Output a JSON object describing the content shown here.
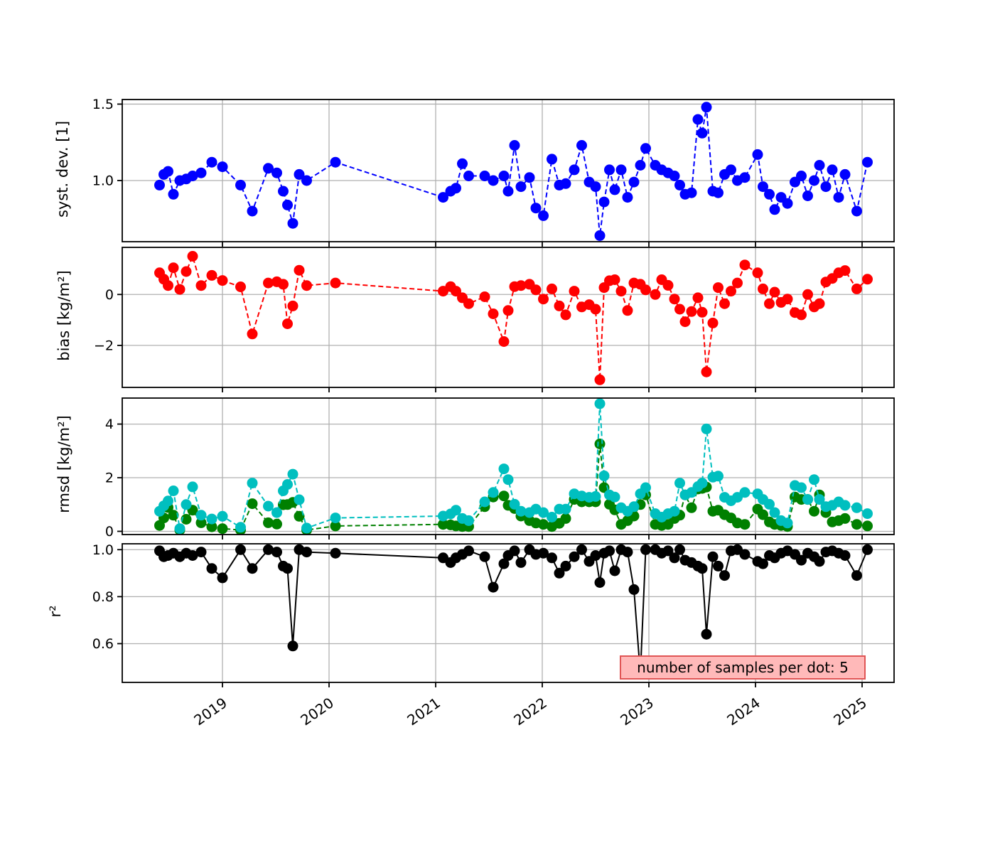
{
  "chart_data": {
    "type": "line",
    "title": "",
    "xlabel": "",
    "xlim": [
      2018.06,
      2025.3
    ],
    "xticks": [
      2019,
      2020,
      2021,
      2022,
      2023,
      2024,
      2025
    ],
    "xtick_labels": [
      "2019",
      "2020",
      "2021",
      "2022",
      "2023",
      "2024",
      "2025"
    ],
    "grid": true,
    "grid_color": "#b0b0b0",
    "x_years": [
      2018.41,
      2018.45,
      2018.49,
      2018.54,
      2018.6,
      2018.66,
      2018.72,
      2018.8,
      2018.9,
      2019.0,
      2019.17,
      2019.28,
      2019.43,
      2019.51,
      2019.57,
      2019.61,
      2019.66,
      2019.72,
      2019.79,
      2020.06,
      2021.07,
      2021.14,
      2021.19,
      2021.25,
      2021.31,
      2021.46,
      2021.54,
      2021.64,
      2021.68,
      2021.74,
      2021.8,
      2021.88,
      2021.94,
      2022.01,
      2022.09,
      2022.16,
      2022.22,
      2022.3,
      2022.37,
      2022.44,
      2022.5,
      2022.54,
      2022.58,
      2022.63,
      2022.68,
      2022.74,
      2022.8,
      2022.86,
      2022.92,
      2022.97,
      2023.06,
      2023.12,
      2023.18,
      2023.24,
      2023.29,
      2023.34,
      2023.4,
      2023.46,
      2023.5,
      2023.54,
      2023.6,
      2023.65,
      2023.71,
      2023.77,
      2023.83,
      2023.9,
      2024.02,
      2024.07,
      2024.13,
      2024.18,
      2024.24,
      2024.3,
      2024.37,
      2024.43,
      2024.49,
      2024.55,
      2024.6,
      2024.66,
      2024.72,
      2024.78,
      2024.84,
      2024.95,
      2025.05
    ],
    "panels": [
      {
        "id": "systdev",
        "ylabel": "syst. dev. [1]",
        "ylim": [
          0.6,
          1.53
        ],
        "yticks": [
          1.0,
          1.5
        ],
        "ytick_labels": [
          "1.0",
          "1.5"
        ],
        "series": [
          {
            "name": "syst_dev",
            "color": "#0000ff",
            "linestyle": "dashed",
            "values": [
              0.97,
              1.04,
              1.06,
              0.91,
              1.0,
              1.01,
              1.03,
              1.05,
              1.12,
              1.09,
              0.97,
              0.8,
              1.08,
              1.05,
              0.93,
              0.84,
              0.72,
              1.04,
              1.0,
              1.12,
              0.89,
              0.93,
              0.95,
              1.11,
              1.03,
              1.03,
              1.0,
              1.03,
              0.93,
              1.23,
              0.96,
              1.02,
              0.82,
              0.77,
              1.14,
              0.97,
              0.98,
              1.07,
              1.23,
              0.99,
              0.96,
              0.64,
              0.86,
              1.07,
              0.94,
              1.07,
              0.89,
              0.99,
              1.1,
              1.21,
              1.1,
              1.07,
              1.05,
              1.03,
              0.97,
              0.91,
              0.92,
              1.4,
              1.31,
              1.48,
              0.93,
              0.92,
              1.04,
              1.07,
              1.0,
              1.02,
              1.17,
              0.96,
              0.91,
              0.81,
              0.89,
              0.85,
              0.99,
              1.03,
              0.9,
              1.0,
              1.1,
              0.96,
              1.07,
              0.89,
              1.04,
              0.8,
              1.12
            ]
          }
        ]
      },
      {
        "id": "bias",
        "ylabel": "bias [kg/m²]",
        "ylim": [
          -3.65,
          1.85
        ],
        "yticks": [
          -2,
          0
        ],
        "ytick_labels": [
          "−2",
          "0"
        ],
        "series": [
          {
            "name": "bias",
            "color": "#ff0000",
            "linestyle": "dashed",
            "values": [
              0.85,
              0.6,
              0.35,
              1.05,
              0.2,
              0.9,
              1.5,
              0.35,
              0.75,
              0.55,
              0.3,
              -1.55,
              0.45,
              0.5,
              0.4,
              -1.15,
              -0.45,
              0.95,
              0.35,
              0.45,
              0.13,
              0.31,
              0.13,
              -0.13,
              -0.36,
              -0.09,
              -0.76,
              -1.85,
              -0.63,
              0.31,
              0.35,
              0.4,
              0.18,
              -0.18,
              0.22,
              -0.45,
              -0.8,
              0.13,
              -0.49,
              -0.4,
              -0.58,
              -3.35,
              0.27,
              0.54,
              0.58,
              0.13,
              -0.63,
              0.45,
              0.4,
              0.18,
              0.0,
              0.58,
              0.36,
              -0.18,
              -0.58,
              -1.07,
              -0.67,
              -0.13,
              -0.7,
              -3.04,
              -1.12,
              0.27,
              -0.36,
              0.13,
              0.45,
              1.16,
              0.85,
              0.22,
              -0.36,
              0.09,
              -0.31,
              -0.18,
              -0.71,
              -0.8,
              0.0,
              -0.49,
              -0.36,
              0.49,
              0.63,
              0.85,
              0.94,
              0.22,
              0.6
            ]
          }
        ]
      },
      {
        "id": "rmsd",
        "ylabel": "rmsd [kg/m²]",
        "ylim": [
          -0.12,
          4.97
        ],
        "yticks": [
          0,
          2,
          4
        ],
        "ytick_labels": [
          "0",
          "2",
          "4"
        ],
        "series": [
          {
            "name": "rmsd_green",
            "color": "#008000",
            "linestyle": "dashed",
            "values": [
              0.22,
              0.5,
              0.89,
              0.6,
              0.05,
              0.45,
              0.79,
              0.32,
              0.17,
              0.1,
              0.05,
              1.03,
              0.32,
              0.27,
              0.99,
              1.0,
              1.08,
              0.56,
              0.05,
              0.2,
              0.26,
              0.24,
              0.2,
              0.18,
              0.18,
              0.92,
              1.28,
              1.32,
              0.97,
              0.85,
              0.57,
              0.4,
              0.31,
              0.26,
              0.18,
              0.3,
              0.48,
              1.19,
              1.1,
              1.1,
              1.1,
              3.26,
              1.63,
              1.01,
              0.8,
              0.26,
              0.4,
              0.57,
              1.0,
              1.36,
              0.26,
              0.22,
              0.26,
              0.48,
              0.6,
              1.36,
              0.88,
              1.58,
              1.6,
              1.65,
              0.75,
              0.79,
              0.62,
              0.5,
              0.31,
              0.26,
              0.83,
              0.62,
              0.35,
              0.26,
              0.22,
              0.18,
              1.28,
              1.19,
              1.19,
              0.75,
              1.36,
              0.7,
              0.35,
              0.4,
              0.48,
              0.26,
              0.2
            ]
          },
          {
            "name": "rmsd_cyan",
            "color": "#00bfbf",
            "linestyle": "dashed",
            "values": [
              0.75,
              0.95,
              1.13,
              1.51,
              0.1,
              1.0,
              1.66,
              0.6,
              0.46,
              0.56,
              0.15,
              1.8,
              0.94,
              0.7,
              1.51,
              1.75,
              2.13,
              1.18,
              0.12,
              0.5,
              0.57,
              0.65,
              0.79,
              0.48,
              0.4,
              1.1,
              1.45,
              2.33,
              1.93,
              1.01,
              0.75,
              0.7,
              0.83,
              0.7,
              0.53,
              0.83,
              0.83,
              1.4,
              1.32,
              1.27,
              1.3,
              4.76,
              2.07,
              1.36,
              1.28,
              0.88,
              0.75,
              0.92,
              1.4,
              1.63,
              0.66,
              0.53,
              0.66,
              0.75,
              1.8,
              1.36,
              1.45,
              1.67,
              1.8,
              3.82,
              2.02,
              2.06,
              1.27,
              1.14,
              1.27,
              1.45,
              1.4,
              1.19,
              1.01,
              0.7,
              0.4,
              0.31,
              1.71,
              1.63,
              1.19,
              1.93,
              1.19,
              0.92,
              0.97,
              1.1,
              0.97,
              0.88,
              0.66
            ]
          }
        ]
      },
      {
        "id": "r2",
        "ylabel": "r²",
        "ylim": [
          0.435,
          1.025
        ],
        "yticks": [
          0.6,
          0.8,
          1.0
        ],
        "ytick_labels": [
          "0.6",
          "0.8",
          "1.0"
        ],
        "annotation": "number of samples per dot: 5",
        "annotation_bg": "#ffb9b9",
        "annotation_border": "#e05555",
        "series": [
          {
            "name": "r2",
            "color": "#000000",
            "linestyle": "solid",
            "values": [
              0.995,
              0.97,
              0.975,
              0.985,
              0.97,
              0.985,
              0.975,
              0.99,
              0.92,
              0.88,
              1.0,
              0.92,
              1.0,
              0.99,
              0.93,
              0.92,
              0.59,
              1.0,
              0.99,
              0.985,
              0.965,
              0.945,
              0.965,
              0.98,
              0.995,
              0.97,
              0.84,
              0.94,
              0.975,
              0.995,
              0.945,
              1.0,
              0.98,
              0.985,
              0.965,
              0.9,
              0.93,
              0.97,
              1.0,
              0.95,
              0.975,
              0.86,
              0.985,
              0.995,
              0.91,
              1.0,
              0.99,
              0.83,
              0.47,
              1.0,
              1.0,
              0.985,
              0.995,
              0.965,
              1.0,
              0.955,
              0.945,
              0.93,
              0.92,
              0.64,
              0.97,
              0.93,
              0.89,
              0.995,
              1.0,
              0.98,
              0.95,
              0.94,
              0.975,
              0.965,
              0.985,
              0.995,
              0.98,
              0.955,
              0.985,
              0.97,
              0.95,
              0.99,
              0.995,
              0.985,
              0.975,
              0.89,
              1.0
            ]
          }
        ]
      }
    ]
  }
}
